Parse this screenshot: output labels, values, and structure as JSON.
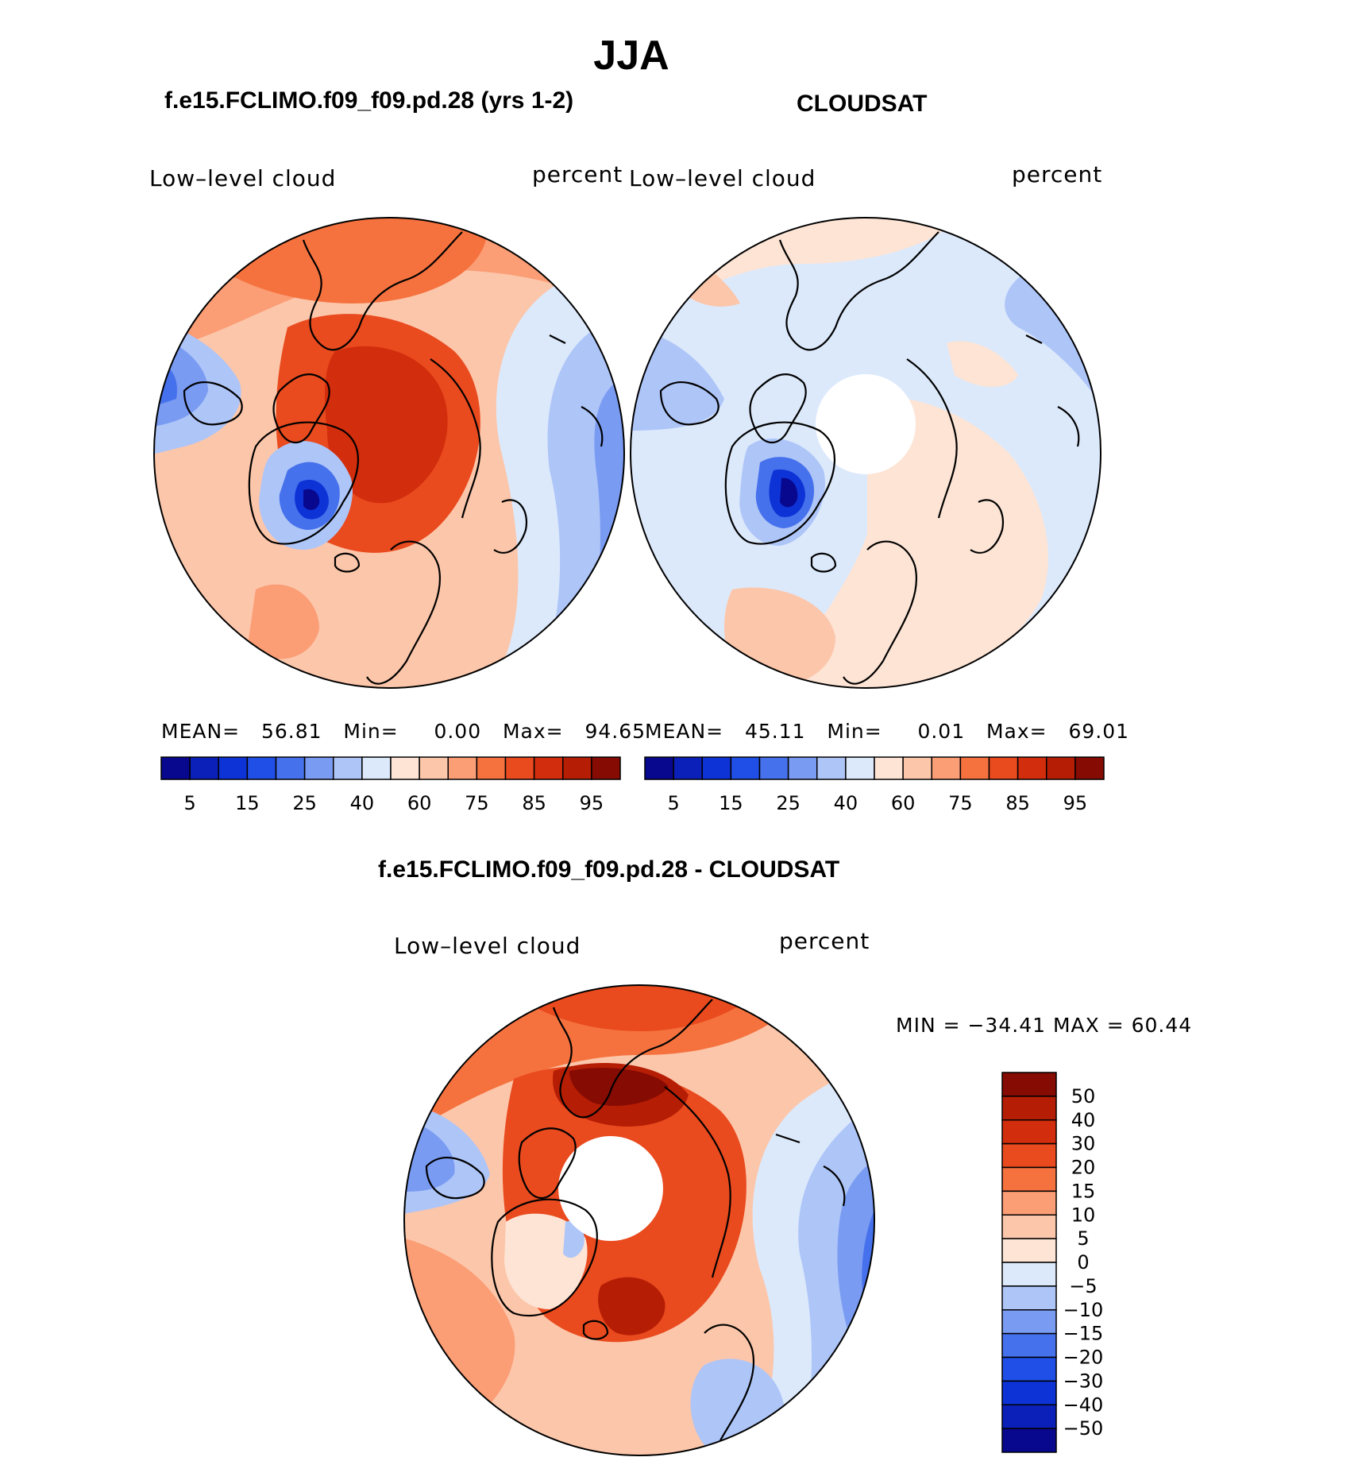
{
  "figure": {
    "title": "JJA",
    "season_label": "JJA",
    "diff_title": "f.e15.FCLIMO.f09_f09.pd.28 - CLOUDSAT"
  },
  "panels": [
    {
      "id": "model",
      "title": "f.e15.FCLIMO.f09_f09.pd.28 (yrs 1-2)",
      "left_label": "Low–level cloud",
      "right_label": "percent",
      "stats": {
        "mean_label": "MEAN=",
        "mean": "56.81",
        "min_label": "Min=",
        "min": "0.00",
        "max_label": "Max=",
        "max": "94.65"
      },
      "polar_hole": false
    },
    {
      "id": "obs",
      "title": "CLOUDSAT",
      "left_label": "Low–level cloud",
      "right_label": "percent",
      "stats": {
        "mean_label": "MEAN=",
        "mean": "45.11",
        "min_label": "Min=",
        "min": "0.01",
        "max_label": "Max=",
        "max": "69.01"
      },
      "polar_hole": true
    }
  ],
  "diff_panel": {
    "left_label": "Low–level cloud",
    "right_label": "percent",
    "minmax": "MIN = −34.41  MAX =   60.44",
    "polar_hole": true
  },
  "colorbar_abs": {
    "colors": [
      "#08088f",
      "#0a20b8",
      "#0d33d6",
      "#1f4fe6",
      "#4671ec",
      "#7a9bf2",
      "#aec5f8",
      "#dce9fb",
      "#fde4d5",
      "#fcc6aa",
      "#fb9d75",
      "#f5723f",
      "#e94a1e",
      "#d22d0c",
      "#b51e05",
      "#850b03"
    ],
    "tick_labels": [
      "5",
      "15",
      "25",
      "40",
      "60",
      "75",
      "85",
      "95"
    ]
  },
  "colorbar_diff": {
    "colors": [
      "#850b03",
      "#b51e05",
      "#d22d0c",
      "#e94a1e",
      "#f5723f",
      "#fb9d75",
      "#fcc6aa",
      "#fde4d5",
      "#dce9fb",
      "#aec5f8",
      "#7a9bf2",
      "#4671ec",
      "#1f4fe6",
      "#0d33d6",
      "#0a20b8",
      "#08088f"
    ],
    "tick_labels": [
      "50",
      "40",
      "30",
      "20",
      "15",
      "10",
      "5",
      "0",
      "−5",
      "−10",
      "−15",
      "−20",
      "−30",
      "−40",
      "−50"
    ]
  },
  "map_colors": {
    "abs_fills": [
      "#dce9fb",
      "#aec5f8",
      "#7a9bf2",
      "#4671ec",
      "#fde4d5",
      "#fcc6aa",
      "#fb9d75",
      "#f5723f",
      "#e94a1e",
      "#d22d0c",
      "#b51e05",
      "#0d33d6",
      "#08088f"
    ],
    "coast": "#000000"
  }
}
